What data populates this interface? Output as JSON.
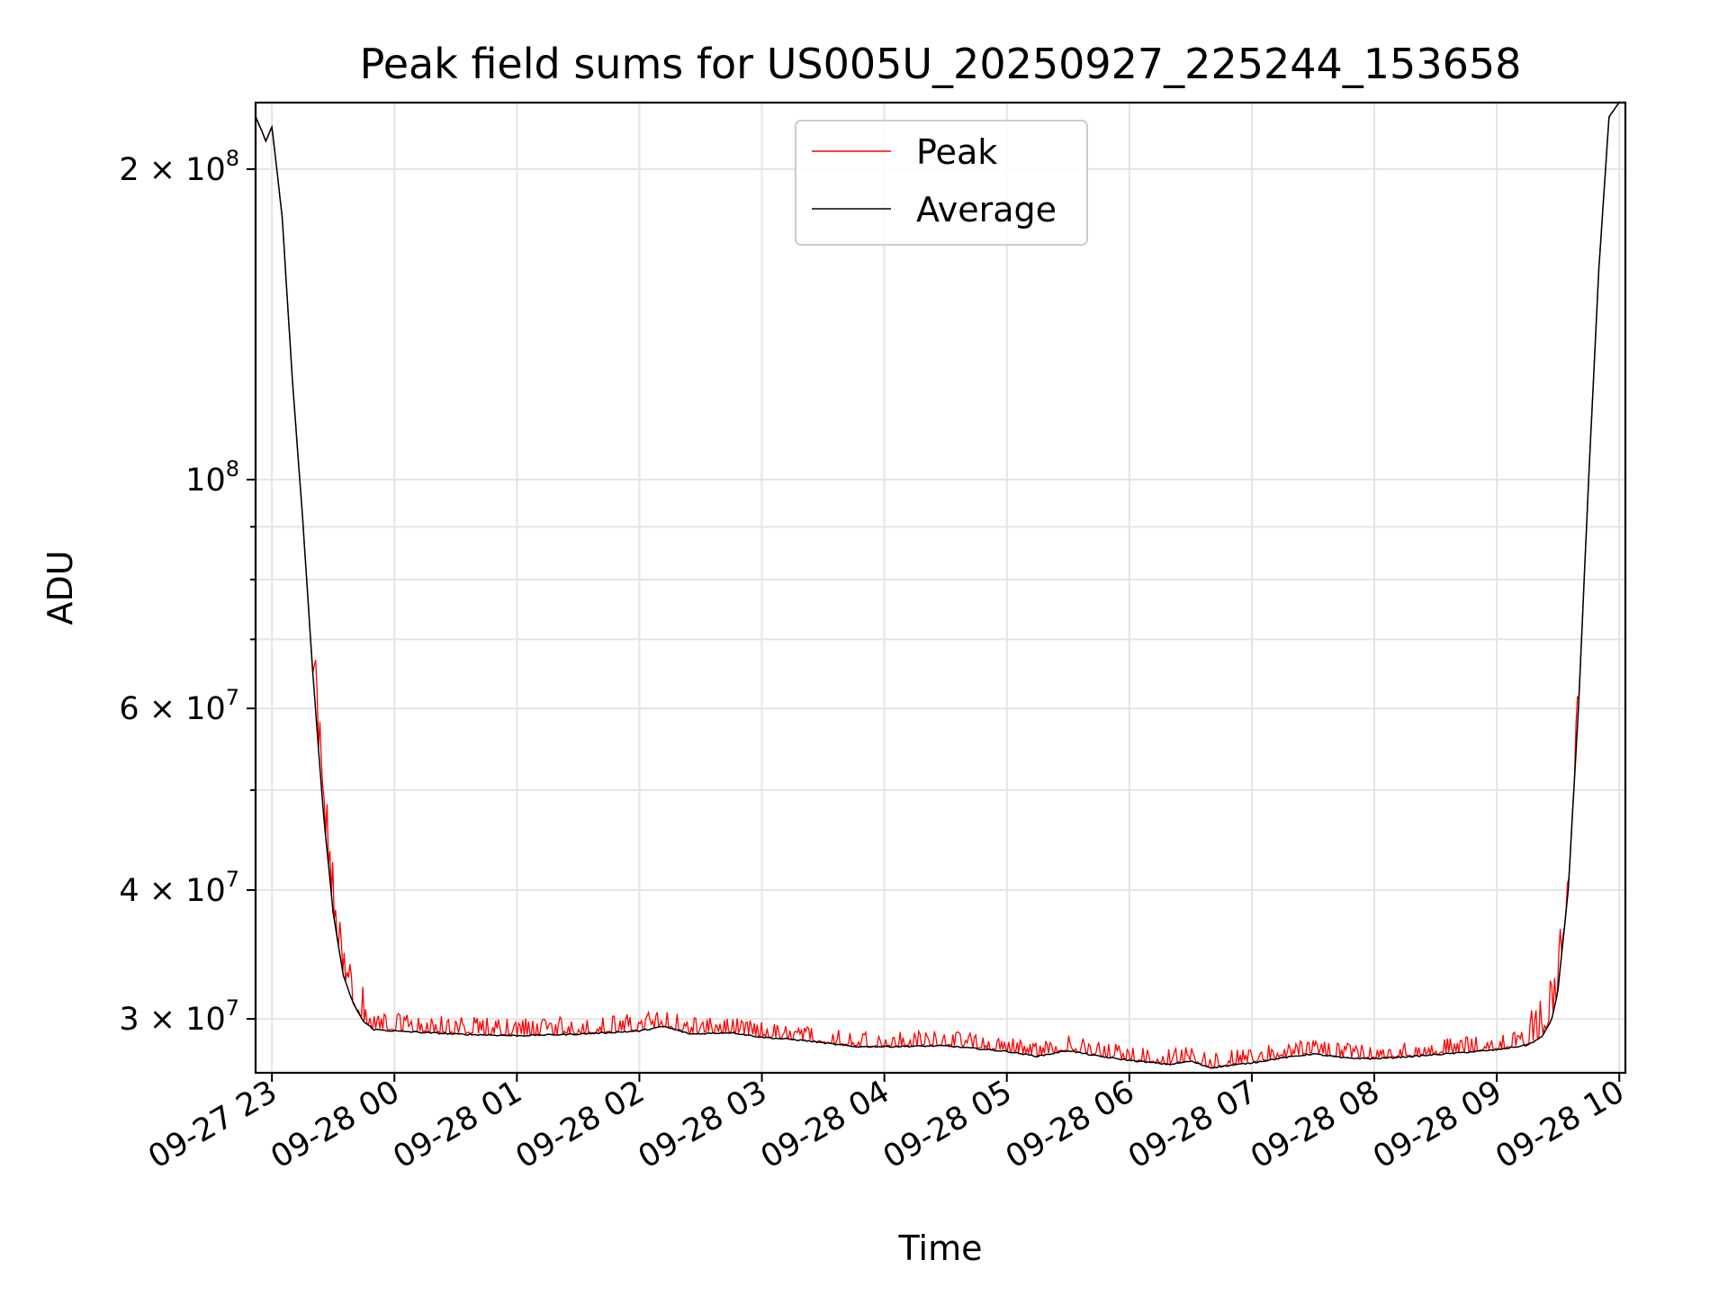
{
  "chart_data": {
    "type": "line",
    "title": "Peak field sums for US005U_20250927_225244_153658",
    "xlabel": "Time",
    "ylabel": "ADU",
    "yscale": "log",
    "grid": true,
    "legend_position": "top-center",
    "xlim": [
      "2025-09-27 22:52",
      "2025-09-28 10:03"
    ],
    "ylim": [
      26600000,
      232000000
    ],
    "x_ticks": [
      "09-27 23",
      "09-28 00",
      "09-28 01",
      "09-28 02",
      "09-28 03",
      "09-28 04",
      "09-28 05",
      "09-28 06",
      "09-28 07",
      "09-28 08",
      "09-28 09",
      "09-28 10"
    ],
    "y_ticks_major": [
      {
        "value": 30000000,
        "label": "3 × 10^7",
        "mantissa": "3",
        "exponent": "7"
      },
      {
        "value": 40000000,
        "label": "4 × 10^7",
        "mantissa": "4",
        "exponent": "7"
      },
      {
        "value": 60000000,
        "label": "6 × 10^7",
        "mantissa": "6",
        "exponent": "7"
      },
      {
        "value": 100000000,
        "label": "10^8",
        "mantissa": "",
        "exponent": "8"
      },
      {
        "value": 200000000,
        "label": "2 × 10^8",
        "mantissa": "2",
        "exponent": "8"
      }
    ],
    "y_ticks_minor": [
      50000000,
      70000000,
      80000000,
      90000000
    ],
    "series": [
      {
        "name": "Peak",
        "color": "#ff0000",
        "spike_ranges": [
          {
            "from": "2025-09-27 23:20",
            "to": "2025-09-27 23:45",
            "max_above_avg": 0.12
          },
          {
            "from": "2025-09-27 23:45",
            "to": "2025-09-28 02:30",
            "max_above_avg": 0.04
          },
          {
            "from": "2025-09-28 02:30",
            "to": "2025-09-28 09:15",
            "max_above_avg": 0.035
          },
          {
            "from": "2025-09-28 09:15",
            "to": "2025-09-28 09:40",
            "max_above_avg": 0.1
          }
        ]
      },
      {
        "name": "Average",
        "color": "#000000",
        "points": [
          [
            "2025-09-27 22:52",
            225000000
          ],
          [
            "2025-09-27 22:55",
            218000000
          ],
          [
            "2025-09-27 22:57",
            213000000
          ],
          [
            "2025-09-27 23:00",
            220000000
          ],
          [
            "2025-09-27 23:05",
            180000000
          ],
          [
            "2025-09-27 23:10",
            125000000
          ],
          [
            "2025-09-27 23:15",
            92000000
          ],
          [
            "2025-09-27 23:20",
            65000000
          ],
          [
            "2025-09-27 23:25",
            48000000
          ],
          [
            "2025-09-27 23:30",
            38000000
          ],
          [
            "2025-09-27 23:35",
            33000000
          ],
          [
            "2025-09-27 23:40",
            31000000
          ],
          [
            "2025-09-27 23:45",
            29800000
          ],
          [
            "2025-09-27 23:50",
            29300000
          ],
          [
            "2025-09-28 00:00",
            29200000
          ],
          [
            "2025-09-28 00:30",
            29000000
          ],
          [
            "2025-09-28 01:00",
            28900000
          ],
          [
            "2025-09-28 01:30",
            29000000
          ],
          [
            "2025-09-28 02:00",
            29200000
          ],
          [
            "2025-09-28 02:12",
            29500000
          ],
          [
            "2025-09-28 02:25",
            29000000
          ],
          [
            "2025-09-28 02:45",
            29100000
          ],
          [
            "2025-09-28 03:00",
            28800000
          ],
          [
            "2025-09-28 03:20",
            28600000
          ],
          [
            "2025-09-28 03:45",
            28200000
          ],
          [
            "2025-09-28 04:00",
            28200000
          ],
          [
            "2025-09-28 04:30",
            28250000
          ],
          [
            "2025-09-28 05:00",
            27900000
          ],
          [
            "2025-09-28 05:15",
            27600000
          ],
          [
            "2025-09-28 05:30",
            27950000
          ],
          [
            "2025-09-28 05:45",
            27600000
          ],
          [
            "2025-09-28 06:00",
            27350000
          ],
          [
            "2025-09-28 06:20",
            27100000
          ],
          [
            "2025-09-28 06:30",
            27300000
          ],
          [
            "2025-09-28 06:40",
            26900000
          ],
          [
            "2025-09-28 07:00",
            27200000
          ],
          [
            "2025-09-28 07:15",
            27500000
          ],
          [
            "2025-09-28 07:30",
            27750000
          ],
          [
            "2025-09-28 07:45",
            27500000
          ],
          [
            "2025-09-28 08:00",
            27450000
          ],
          [
            "2025-09-28 08:20",
            27600000
          ],
          [
            "2025-09-28 08:40",
            27800000
          ],
          [
            "2025-09-28 09:00",
            28000000
          ],
          [
            "2025-09-28 09:15",
            28300000
          ],
          [
            "2025-09-28 09:22",
            28800000
          ],
          [
            "2025-09-28 09:27",
            30000000
          ],
          [
            "2025-09-28 09:30",
            32000000
          ],
          [
            "2025-09-28 09:35",
            40000000
          ],
          [
            "2025-09-28 09:40",
            60000000
          ],
          [
            "2025-09-28 09:45",
            100000000
          ],
          [
            "2025-09-28 09:50",
            160000000
          ],
          [
            "2025-09-28 09:55",
            225000000
          ],
          [
            "2025-09-28 10:00",
            232000000
          ],
          [
            "2025-09-28 10:03",
            232000000
          ]
        ]
      }
    ]
  }
}
